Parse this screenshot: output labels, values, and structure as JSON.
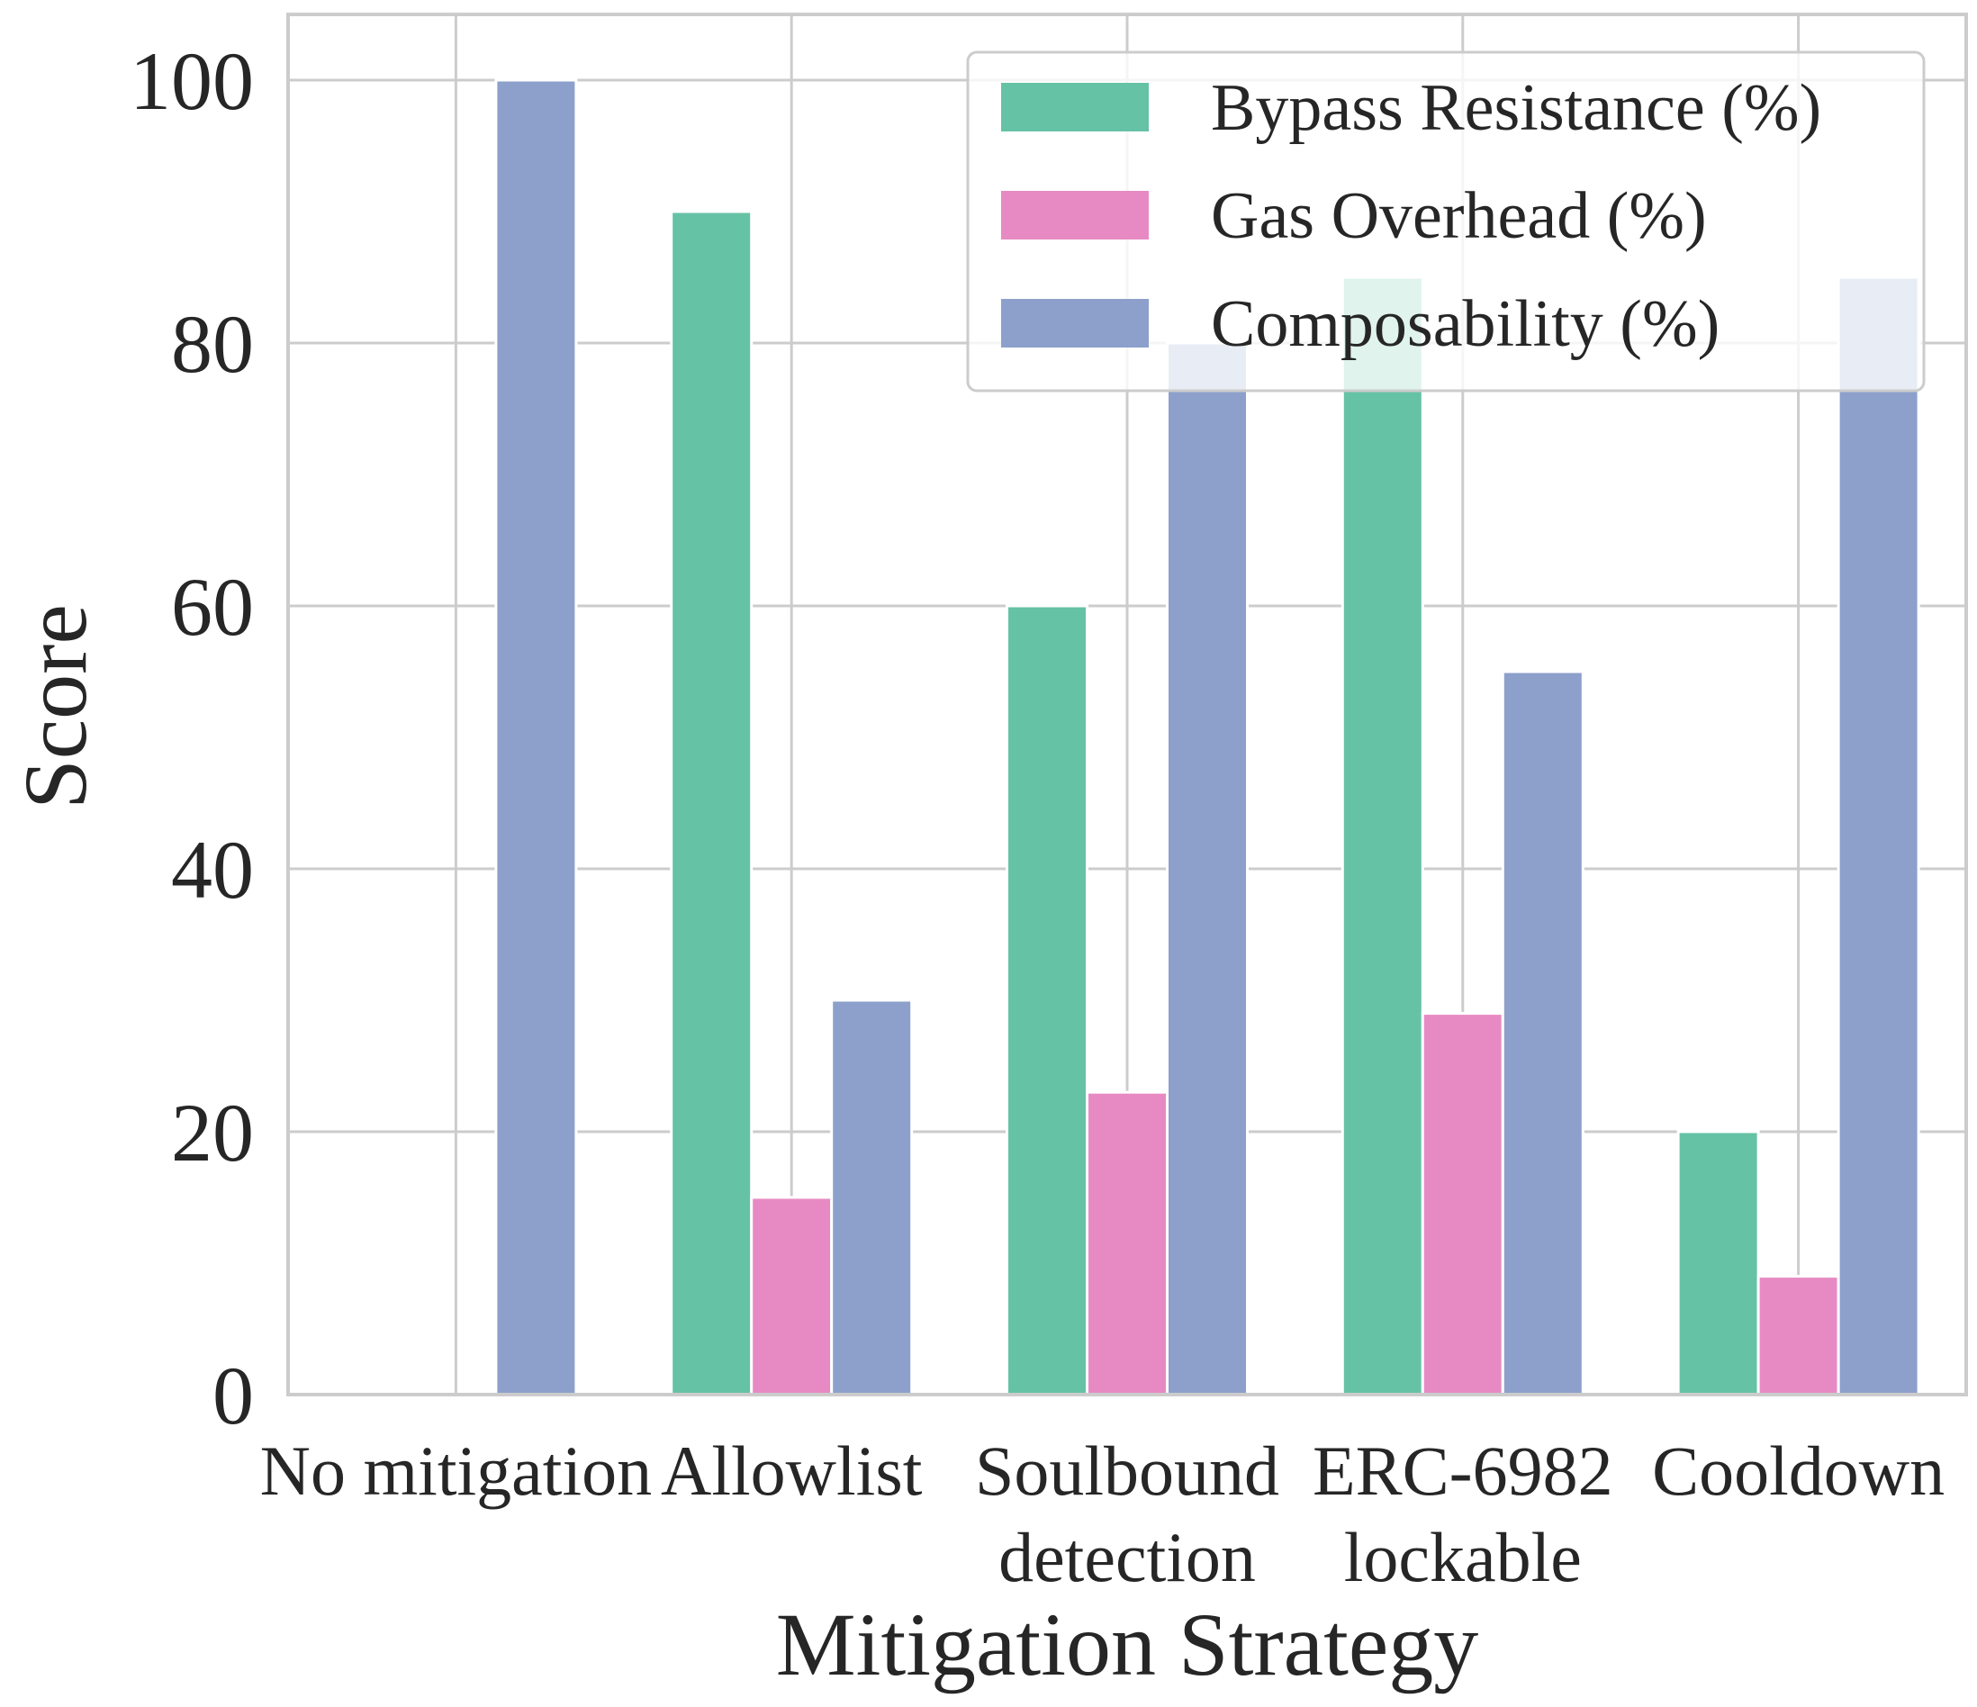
{
  "chart_data": {
    "type": "bar",
    "title": "",
    "xlabel": "Mitigation Strategy",
    "ylabel": "Score",
    "ylim": [
      0,
      105
    ],
    "yticks": [
      0,
      20,
      40,
      60,
      80,
      100
    ],
    "grid": true,
    "legend_position": "top-right",
    "categories": [
      [
        "No mitigation"
      ],
      [
        "Allowlist"
      ],
      [
        "Soulbound",
        "detection"
      ],
      [
        "ERC-6982",
        "lockable"
      ],
      [
        "Cooldown"
      ]
    ],
    "series": [
      {
        "name": "Bypass Resistance (%)",
        "color": "#66c2a5",
        "values": [
          0,
          90,
          60,
          85,
          20
        ]
      },
      {
        "name": "Gas Overhead (%)",
        "color": "#e78ac3",
        "values": [
          0,
          15,
          23,
          29,
          9
        ]
      },
      {
        "name": "Composability (%)",
        "color": "#8da0cb",
        "values": [
          100,
          30,
          80,
          55,
          85
        ]
      }
    ]
  }
}
